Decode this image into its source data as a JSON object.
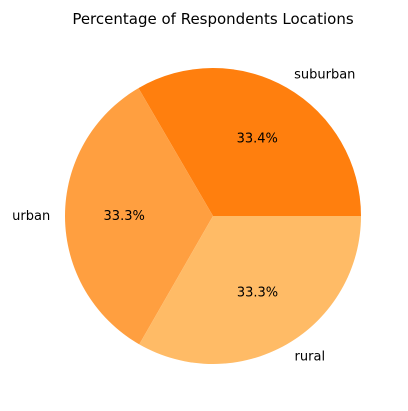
{
  "chart_data": {
    "type": "pie",
    "title": "Percentage of Respondents Locations",
    "labels": [
      "suburban",
      "urban",
      "rural"
    ],
    "values": [
      33.4,
      33.3,
      33.3
    ],
    "value_labels": [
      "33.4%",
      "33.3%",
      "33.3%"
    ],
    "colors": [
      "#ff7f0e",
      "#ff9f40",
      "#ffbb66"
    ],
    "start_angle_deg": 0,
    "direction": "counterclockwise",
    "legend": "none"
  }
}
